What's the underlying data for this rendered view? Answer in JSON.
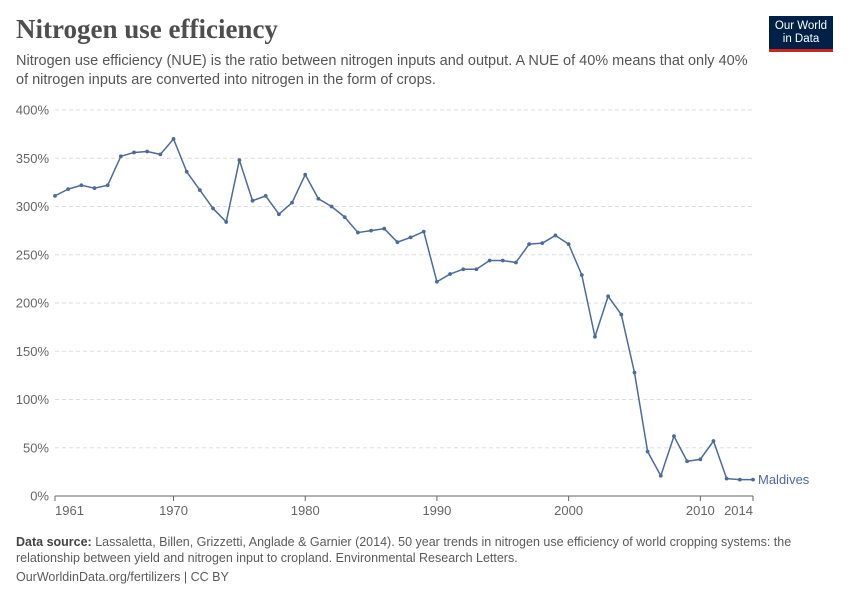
{
  "header": {
    "title": "Nitrogen use efficiency",
    "subtitle": "Nitrogen use efficiency (NUE) is the ratio between nitrogen inputs and output. A NUE of 40% means that only 40% of nitrogen inputs are converted into nitrogen in the form of crops.",
    "logo_line1": "Our World",
    "logo_line2": "in Data"
  },
  "footer": {
    "source_label": "Data source:",
    "source_text": "Lassaletta, Billen, Grizzetti, Anglade & Garnier (2014). 50 year trends in nitrogen use efficiency of world cropping systems: the relationship between yield and nitrogen input to cropland. Environmental Research Letters.",
    "license": "OurWorldinData.org/fertilizers | CC BY"
  },
  "colors": {
    "series": "#4c6a9c",
    "grid": "#dddddd",
    "axis": "#666666",
    "logo_bg": "#002147",
    "logo_accent": "#ce261e"
  },
  "chart_data": {
    "type": "line",
    "title": "Nitrogen use efficiency",
    "xlabel": "",
    "ylabel": "",
    "xlim": [
      1961,
      2014
    ],
    "ylim": [
      0,
      400
    ],
    "y_ticks": [
      0,
      50,
      100,
      150,
      200,
      250,
      300,
      350,
      400
    ],
    "y_tick_labels": [
      "0%",
      "50%",
      "100%",
      "150%",
      "200%",
      "250%",
      "300%",
      "350%",
      "400%"
    ],
    "x_ticks": [
      1961,
      1970,
      1980,
      1990,
      2000,
      2010,
      2014
    ],
    "x_tick_labels": [
      "1961",
      "1970",
      "1980",
      "1990",
      "2000",
      "2010",
      "2014"
    ],
    "grid": "horizontal dashed",
    "series": [
      {
        "name": "Maldives",
        "x": [
          1961,
          1962,
          1963,
          1964,
          1965,
          1966,
          1967,
          1968,
          1969,
          1970,
          1971,
          1972,
          1973,
          1974,
          1975,
          1976,
          1977,
          1978,
          1979,
          1980,
          1981,
          1982,
          1983,
          1984,
          1985,
          1986,
          1987,
          1988,
          1989,
          1990,
          1991,
          1992,
          1993,
          1994,
          1995,
          1996,
          1997,
          1998,
          1999,
          2000,
          2001,
          2002,
          2003,
          2004,
          2005,
          2006,
          2007,
          2008,
          2009,
          2010,
          2011,
          2012,
          2013,
          2014
        ],
        "values": [
          311,
          318,
          322,
          319,
          322,
          352,
          356,
          357,
          354,
          370,
          336,
          317,
          298,
          284,
          348,
          306,
          311,
          292,
          304,
          333,
          308,
          300,
          289,
          273,
          275,
          277,
          263,
          268,
          274,
          222,
          230,
          235,
          235,
          244,
          244,
          242,
          261,
          262,
          270,
          261,
          229,
          165,
          207,
          188,
          128,
          46,
          21,
          62,
          36,
          38,
          57,
          18,
          17,
          17
        ]
      }
    ]
  }
}
